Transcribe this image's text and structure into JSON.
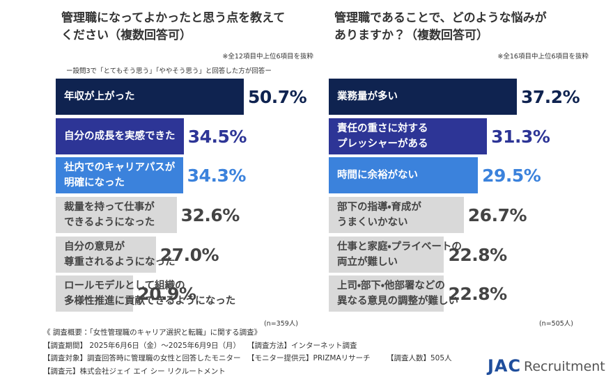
{
  "chart_data": [
    {
      "type": "bar",
      "orientation": "horizontal",
      "title": [
        "管理職になってよかったと思う点を教えて",
        "ください（複数回答可）"
      ],
      "note": "※全12項目中上位6項目を抜粋",
      "subtitle": "ー設問3で「とてもそう思う」「ややそう思う」と回答した方が回答ー",
      "categories": [
        "年収が上がった",
        "自分の成長を実感できた",
        "社内でのキャリアパスが\n明確になった",
        "裁量を持って仕事が\nできるようになった",
        "自分の意見が\n尊重されるようになった",
        "ロールモデルとして組織の\n多様性推進に貢献できるようになった"
      ],
      "values": [
        50.7,
        34.5,
        34.3,
        32.6,
        27.0,
        20.9
      ],
      "value_labels": [
        "50.7%",
        "34.5%",
        "34.3%",
        "32.6%",
        "27.0%",
        "20.9%"
      ],
      "colors": [
        "#0f2350",
        "#2d3596",
        "#3b82dc",
        "#d9d9d9",
        "#d9d9d9",
        "#d9d9d9"
      ],
      "sample": "(n=359人)"
    },
    {
      "type": "bar",
      "orientation": "horizontal",
      "title": [
        "管理職であることで、どのような悩みが",
        "ありますか？（複数回答可）"
      ],
      "note": "※全16項目中上位6項目を抜粋",
      "categories": [
        "業務量が多い",
        "責任の重さに対する\nプレッシャーがある",
        "時間に余裕がない",
        "部下の指導・育成が\nうまくいかない",
        "仕事と家庭・プライベートの\n両立が難しい",
        "上司・部下・他部署などの\n異なる意見の調整が難しい"
      ],
      "values": [
        37.2,
        31.3,
        29.5,
        26.7,
        22.8,
        22.8
      ],
      "value_labels": [
        "37.2%",
        "31.3%",
        "29.5%",
        "26.7%",
        "22.8%",
        "22.8%"
      ],
      "colors": [
        "#0f2350",
        "#2d3596",
        "#3b82dc",
        "#d9d9d9",
        "#d9d9d9",
        "#d9d9d9"
      ],
      "sample": "(n=505人)"
    }
  ],
  "footer": {
    "lines": [
      [
        "《 調査概要：「女性管理職のキャリア選択と転職」に関する調査》"
      ],
      [
        "【調査期間】 2025年6月6日（金）～2025年6月9日（月）",
        "【調査方法】インターネット調査"
      ],
      [
        "【調査対象】調査回答時に管理職の女性と回答したモニター",
        "【モニター提供元】PRIZMAリサーチ",
        "【調査人数】505人"
      ],
      [
        "【調査元】株式会社ジェイ エイ シー リクルートメント"
      ]
    ],
    "logo": [
      "JAC",
      "Recruitment"
    ]
  }
}
